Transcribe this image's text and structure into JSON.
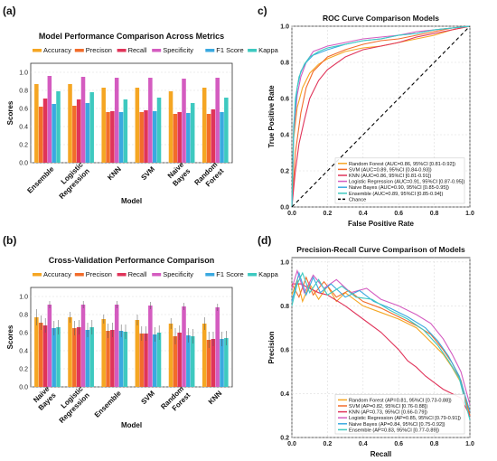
{
  "colors": {
    "Accuracy": "#f5a623",
    "Precison": "#f26c2a",
    "Recall": "#e0345a",
    "Specificity": "#d45cc0",
    "F1 Score": "#3aa9e0",
    "Kappa": "#3ec9c0",
    "Random Forest": "#f5a623",
    "SVM": "#f26c2a",
    "KNN": "#e0345a",
    "Logistic Regression": "#d45cc0",
    "Naive Bayes": "#3aa9e0",
    "Ensemble": "#3ec9c0"
  },
  "chart_data": [
    {
      "panel": "(a)",
      "type": "bar",
      "title": "Model Performance Comparison Across Metrics",
      "xlabel": "Model",
      "ylabel": "Scores",
      "ylim": [
        0,
        1.1
      ],
      "yticks": [
        0.0,
        0.2,
        0.4,
        0.6,
        0.8,
        1.0
      ],
      "grid": true,
      "legend": "top",
      "categories": [
        [
          "Ensemble"
        ],
        [
          "Logistic",
          "Regression"
        ],
        [
          "KNN"
        ],
        [
          "SVM"
        ],
        [
          "Naive",
          "Bayes"
        ],
        [
          "Random",
          "Forest"
        ]
      ],
      "series": [
        {
          "name": "Accuracy",
          "values": [
            0.87,
            0.87,
            0.83,
            0.83,
            0.79,
            0.83
          ]
        },
        {
          "name": "Precison",
          "values": [
            0.62,
            0.63,
            0.56,
            0.56,
            0.54,
            0.54
          ]
        },
        {
          "name": "Recall",
          "values": [
            0.71,
            0.7,
            0.57,
            0.58,
            0.56,
            0.59
          ]
        },
        {
          "name": "Specificity",
          "values": [
            0.96,
            0.95,
            0.94,
            0.94,
            0.93,
            0.94
          ]
        },
        {
          "name": "F1 Score",
          "values": [
            0.65,
            0.66,
            0.56,
            0.57,
            0.55,
            0.56
          ]
        },
        {
          "name": "Kappa",
          "values": [
            0.79,
            0.78,
            0.7,
            0.72,
            0.66,
            0.72
          ]
        }
      ]
    },
    {
      "panel": "(b)",
      "type": "bar",
      "title": "Cross-Validation Performance Comparison",
      "xlabel": "Model",
      "ylabel": "Scores",
      "ylim": [
        0,
        1.1
      ],
      "yticks": [
        0.0,
        0.2,
        0.4,
        0.6,
        0.8,
        1.0
      ],
      "grid": true,
      "legend": "top",
      "categories": [
        [
          "Naive",
          "Bayes"
        ],
        [
          "Logistic",
          "Regression"
        ],
        [
          "Ensemble"
        ],
        [
          "SVM"
        ],
        [
          "Random",
          "Forest"
        ],
        [
          "KNN"
        ]
      ],
      "series": [
        {
          "name": "Accuracy",
          "values": [
            0.77,
            0.77,
            0.75,
            0.74,
            0.7,
            0.7
          ],
          "err": [
            0.09,
            0.06,
            0.05,
            0.06,
            0.06,
            0.07
          ]
        },
        {
          "name": "Precison",
          "values": [
            0.71,
            0.65,
            0.62,
            0.59,
            0.56,
            0.52
          ],
          "err": [
            0.08,
            0.08,
            0.08,
            0.08,
            0.09,
            0.09
          ]
        },
        {
          "name": "Recall",
          "values": [
            0.68,
            0.66,
            0.63,
            0.59,
            0.6,
            0.53
          ],
          "err": [
            0.08,
            0.08,
            0.08,
            0.08,
            0.08,
            0.08
          ]
        },
        {
          "name": "Specificity",
          "values": [
            0.91,
            0.91,
            0.91,
            0.9,
            0.89,
            0.88
          ],
          "err": [
            0.04,
            0.04,
            0.04,
            0.04,
            0.04,
            0.04
          ]
        },
        {
          "name": "F1 Score",
          "values": [
            0.65,
            0.63,
            0.62,
            0.58,
            0.57,
            0.53
          ],
          "err": [
            0.08,
            0.08,
            0.07,
            0.08,
            0.08,
            0.08
          ]
        },
        {
          "name": "Kappa",
          "values": [
            0.66,
            0.66,
            0.61,
            0.6,
            0.56,
            0.54
          ],
          "err": [
            0.08,
            0.08,
            0.08,
            0.08,
            0.08,
            0.08
          ]
        }
      ]
    },
    {
      "panel": "c)",
      "type": "line",
      "title": "ROC Curve Comparison Models",
      "xlabel": "False Positive Rate",
      "ylabel": "True Positive Rate",
      "xlim": [
        0,
        1
      ],
      "ylim": [
        0,
        1
      ],
      "xticks": [
        0.0,
        0.2,
        0.4,
        0.6,
        0.8,
        1.0
      ],
      "yticks": [
        0.0,
        0.2,
        0.4,
        0.6,
        0.8,
        1.0
      ],
      "grid": true,
      "legend": "bottom-right",
      "series": [
        {
          "name": "Random Forest",
          "label": "Random Forest (AUC=0.86, 95%CI [0.81-0.92])",
          "x": [
            0,
            0.01,
            0.03,
            0.06,
            0.1,
            0.15,
            0.2,
            0.3,
            0.4,
            0.5,
            0.6,
            0.7,
            0.8,
            0.9,
            1.0
          ],
          "y": [
            0,
            0.38,
            0.55,
            0.66,
            0.74,
            0.79,
            0.82,
            0.86,
            0.88,
            0.89,
            0.91,
            0.93,
            0.95,
            0.98,
            1.0
          ]
        },
        {
          "name": "SVM",
          "label": "SVM (AUC=0.89, 95%CI [0.84-0.93])",
          "x": [
            0,
            0.02,
            0.05,
            0.08,
            0.12,
            0.2,
            0.3,
            0.4,
            0.5,
            0.6,
            0.7,
            0.8,
            0.9,
            1.0
          ],
          "y": [
            0,
            0.3,
            0.52,
            0.66,
            0.75,
            0.83,
            0.87,
            0.9,
            0.92,
            0.93,
            0.95,
            0.97,
            0.99,
            1.0
          ]
        },
        {
          "name": "KNN",
          "label": "KNN (AUC=0.86, 95%CI [0.81-0.91])",
          "x": [
            0,
            0.02,
            0.04,
            0.07,
            0.1,
            0.15,
            0.2,
            0.3,
            0.4,
            0.5,
            0.6,
            0.7,
            0.8,
            0.9,
            1.0
          ],
          "y": [
            0,
            0.2,
            0.35,
            0.48,
            0.6,
            0.7,
            0.76,
            0.83,
            0.87,
            0.89,
            0.91,
            0.94,
            0.96,
            0.98,
            1.0
          ]
        },
        {
          "name": "Logistic Regression",
          "label": "Logistic Regression (AUC=0.91, 95%CI [0.87-0.95])",
          "x": [
            0,
            0.01,
            0.03,
            0.05,
            0.08,
            0.12,
            0.2,
            0.3,
            0.4,
            0.5,
            0.6,
            0.7,
            0.8,
            0.9,
            1.0
          ],
          "y": [
            0,
            0.4,
            0.62,
            0.72,
            0.8,
            0.86,
            0.89,
            0.91,
            0.93,
            0.94,
            0.95,
            0.97,
            0.98,
            0.99,
            1.0
          ]
        },
        {
          "name": "Naive Bayes",
          "label": "Naive Bayes (AUC=0.90, 95%CI [0.85-0.95])",
          "x": [
            0,
            0.01,
            0.03,
            0.05,
            0.08,
            0.12,
            0.2,
            0.3,
            0.4,
            0.5,
            0.6,
            0.7,
            0.8,
            0.9,
            1.0
          ],
          "y": [
            0,
            0.45,
            0.66,
            0.75,
            0.8,
            0.84,
            0.87,
            0.9,
            0.92,
            0.93,
            0.95,
            0.96,
            0.98,
            0.99,
            1.0
          ]
        },
        {
          "name": "Ensemble",
          "label": "Ensemble (AUC=0.89, 95%CI [0.85-0.94])",
          "x": [
            0,
            0.01,
            0.02,
            0.04,
            0.07,
            0.1,
            0.15,
            0.2,
            0.3,
            0.4,
            0.5,
            0.6,
            0.7,
            0.8,
            0.9,
            1.0
          ],
          "y": [
            0,
            0.42,
            0.6,
            0.72,
            0.79,
            0.83,
            0.86,
            0.88,
            0.9,
            0.92,
            0.93,
            0.95,
            0.96,
            0.98,
            0.99,
            1.0
          ]
        },
        {
          "name": "Chance",
          "label": "Chance",
          "dashed": true,
          "color": "#000000",
          "x": [
            0,
            1
          ],
          "y": [
            0,
            1
          ]
        }
      ]
    },
    {
      "panel": "(d)",
      "type": "line",
      "title": "Precision-Recall Curve Comparison of Models",
      "xlabel": "Recall",
      "ylabel": "Precision",
      "xlim": [
        0,
        1
      ],
      "ylim": [
        0.2,
        1.02
      ],
      "xticks": [
        0.0,
        0.2,
        0.4,
        0.6,
        0.8,
        1.0
      ],
      "yticks": [
        0.2,
        0.4,
        0.6,
        0.8,
        1.0
      ],
      "grid": true,
      "legend": "bottom-right",
      "series": [
        {
          "name": "Random Forest",
          "label": "Random Forest (AP=0.81, 95%CI [0.73-0.88])",
          "x": [
            0,
            0.03,
            0.06,
            0.1,
            0.15,
            0.2,
            0.25,
            0.3,
            0.4,
            0.5,
            0.6,
            0.7,
            0.75,
            0.8,
            0.85,
            0.9,
            0.95,
            1.0
          ],
          "y": [
            0.85,
            0.92,
            0.82,
            0.9,
            0.83,
            0.89,
            0.82,
            0.86,
            0.8,
            0.77,
            0.74,
            0.7,
            0.66,
            0.62,
            0.58,
            0.52,
            0.45,
            0.3
          ]
        },
        {
          "name": "SVM",
          "label": "SVM (AP=0.82, 95%CI [0.76-0.88])",
          "x": [
            0,
            0.04,
            0.08,
            0.12,
            0.18,
            0.25,
            0.32,
            0.4,
            0.5,
            0.6,
            0.7,
            0.78,
            0.85,
            0.9,
            0.95,
            1.0
          ],
          "y": [
            0.9,
            0.84,
            0.93,
            0.85,
            0.91,
            0.84,
            0.87,
            0.82,
            0.79,
            0.75,
            0.71,
            0.67,
            0.6,
            0.54,
            0.46,
            0.3
          ]
        },
        {
          "name": "KNN",
          "label": "KNN (AP=0.73, 95%CI [0.66-0.79])",
          "x": [
            0,
            0.05,
            0.1,
            0.15,
            0.2,
            0.3,
            0.4,
            0.5,
            0.6,
            0.65,
            0.7,
            0.75,
            0.8,
            0.85,
            0.9,
            0.95,
            1.0
          ],
          "y": [
            0.9,
            0.9,
            0.88,
            0.86,
            0.85,
            0.8,
            0.74,
            0.68,
            0.6,
            0.55,
            0.52,
            0.48,
            0.45,
            0.42,
            0.4,
            0.38,
            0.3
          ]
        },
        {
          "name": "Logistic Regression",
          "label": "Logistic Regression (AP=0.85, 95%CI [0.79-0.91])",
          "x": [
            0,
            0.03,
            0.07,
            0.12,
            0.18,
            0.25,
            0.33,
            0.42,
            0.5,
            0.6,
            0.7,
            0.78,
            0.85,
            0.9,
            0.95,
            1.0
          ],
          "y": [
            0.88,
            0.96,
            0.86,
            0.94,
            0.88,
            0.92,
            0.86,
            0.88,
            0.83,
            0.8,
            0.76,
            0.72,
            0.65,
            0.58,
            0.5,
            0.35
          ]
        },
        {
          "name": "Naive Bayes",
          "label": "Naive Bayes (AP=0.84, 95%CI [0.75-0.92])",
          "x": [
            0,
            0.04,
            0.08,
            0.12,
            0.16,
            0.22,
            0.3,
            0.38,
            0.46,
            0.55,
            0.65,
            0.75,
            0.82,
            0.88,
            0.94,
            1.0
          ],
          "y": [
            0.82,
            0.95,
            0.85,
            0.93,
            0.86,
            0.9,
            0.84,
            0.87,
            0.82,
            0.79,
            0.75,
            0.7,
            0.64,
            0.57,
            0.48,
            0.32
          ]
        },
        {
          "name": "Ensemble",
          "label": "Ensemble (AP=0.83, 95%CI [0.77-0.89])",
          "x": [
            0,
            0.03,
            0.06,
            0.1,
            0.15,
            0.2,
            0.28,
            0.36,
            0.45,
            0.55,
            0.65,
            0.74,
            0.82,
            0.88,
            0.94,
            1.0
          ],
          "y": [
            0.8,
            0.9,
            0.95,
            0.86,
            0.92,
            0.85,
            0.89,
            0.84,
            0.83,
            0.78,
            0.74,
            0.69,
            0.62,
            0.55,
            0.47,
            0.28
          ]
        }
      ]
    }
  ]
}
